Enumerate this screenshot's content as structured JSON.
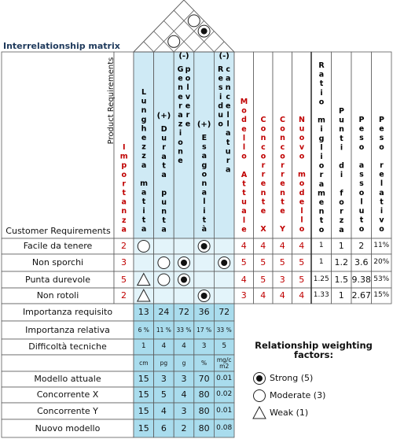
{
  "title": "Interrelationship matrix",
  "header": {
    "product_requirements": "Product Requirements",
    "customer_requirements": "Customer Requirements",
    "importance": "Importanza"
  },
  "technical": [
    {
      "label": "Lunghezza matita"
    },
    {
      "direction": "(+)",
      "label": "Durata punta"
    },
    {
      "direction": "(-)",
      "label": "Generazione polvere"
    },
    {
      "direction": "(+)",
      "label": "Esagonalità"
    },
    {
      "direction": "(-)",
      "label": "Residuo cancellatura"
    }
  ],
  "competitors": [
    "Modello Attuale",
    "Concorrente X",
    "Concorrente Y",
    "Nuovo modello"
  ],
  "analysis": [
    "Ratio miglioramento",
    "Punti di forza",
    "Peso assoluto",
    "Peso relativo"
  ],
  "requirements": [
    {
      "name": "Facile da tenere",
      "importance": "2",
      "relationships": [
        3,
        null,
        null,
        5,
        null
      ],
      "competitors": [
        "4",
        "4",
        "4",
        "4"
      ],
      "analysis": [
        "1",
        "1",
        "2",
        "11%"
      ]
    },
    {
      "name": "Non sporchi",
      "importance": "3",
      "relationships": [
        null,
        3,
        5,
        null,
        5
      ],
      "competitors": [
        "5",
        "5",
        "5",
        "5"
      ],
      "analysis": [
        "1",
        "1.2",
        "3.6",
        "20%"
      ]
    },
    {
      "name": "Punta durevole",
      "importance": "5",
      "relationships": [
        1,
        3,
        5,
        null,
        null
      ],
      "competitors": [
        "4",
        "5",
        "3",
        "5"
      ],
      "analysis": [
        "1.25",
        "1.5",
        "9.38",
        "53%"
      ]
    },
    {
      "name": "Non rotoli",
      "importance": "2",
      "relationships": [
        1,
        null,
        null,
        5,
        null
      ],
      "competitors": [
        "3",
        "4",
        "4",
        "4"
      ],
      "analysis": [
        "1.33",
        "1",
        "2.67",
        "15%"
      ]
    }
  ],
  "roof": [
    {
      "columns": [
        1,
        2
      ],
      "value": 3
    },
    {
      "columns": [
        1,
        4
      ],
      "value": 3
    },
    {
      "columns": [
        2,
        4
      ],
      "value": 5
    }
  ],
  "bottom_rows": [
    {
      "label": "Importanza requisito",
      "cells": [
        "13",
        "24",
        "72",
        "36",
        "72"
      ]
    },
    {
      "label": "Importanza relativa",
      "cells": [
        "6 %",
        "11 %",
        "33 %",
        "17 %",
        "33 %"
      ]
    },
    {
      "label": "Difficoltà tecniche",
      "cells": [
        "1",
        "4",
        "4",
        "3",
        "5"
      ]
    },
    {
      "cells": [
        "cm",
        "pg",
        "g",
        "%",
        "mg/cm2"
      ]
    },
    {
      "label": "Modello attuale",
      "cells": [
        "15",
        "3",
        "3",
        "70",
        "0.01"
      ]
    },
    {
      "label": "Concorrente X",
      "cells": [
        "15",
        "5",
        "4",
        "80",
        "0.02"
      ]
    },
    {
      "label": "Concorrente Y",
      "cells": [
        "15",
        "4",
        "3",
        "80",
        "0.01"
      ]
    },
    {
      "label": "Nuovo modello",
      "cells": [
        "15",
        "6",
        "2",
        "80",
        "0.08"
      ]
    }
  ],
  "legend": {
    "title": "Relationship weighting factors:",
    "items": [
      {
        "value": 5,
        "label": "Strong (5)"
      },
      {
        "value": 3,
        "label": "Moderate (3)"
      },
      {
        "value": 1,
        "label": "Weak (1)"
      }
    ]
  }
}
